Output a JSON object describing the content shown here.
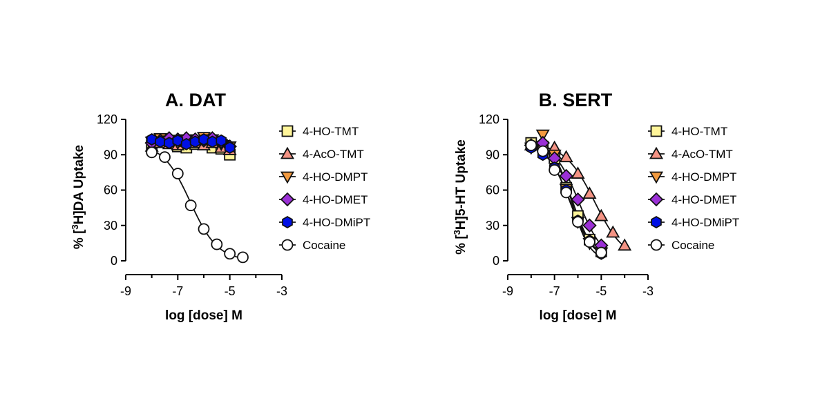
{
  "colors": {
    "4-HO-TMT": "#fff59a",
    "4-AcO-TMT": "#f49384",
    "4-HO-DMPT": "#f39a3f",
    "4-HO-DMET": "#9b30d6",
    "4-HO-DMiPT": "#0010e6",
    "Cocaine": "#ffffff"
  },
  "markers": {
    "4-HO-TMT": "square",
    "4-AcO-TMT": "triangle-up",
    "4-HO-DMPT": "triangle-down",
    "4-HO-DMET": "diamond",
    "4-HO-DMiPT": "hexagon",
    "Cocaine": "circle"
  },
  "chart_data": [
    {
      "type": "scatter",
      "title": "A. DAT",
      "xlabel": "log [dose] M",
      "ylabel_prefix": "% [",
      "ylabel_sup": "3",
      "ylabel_suffix": "H]DA Uptake",
      "xlim": [
        -9,
        -3
      ],
      "ylim": [
        0,
        120
      ],
      "xticks": [
        -9,
        -7,
        -5,
        -3
      ],
      "yticks": [
        0,
        30,
        60,
        90,
        120
      ],
      "legend_position": "right",
      "series": [
        {
          "name": "4-HO-TMT",
          "x": [
            -8,
            -7.67,
            -7.33,
            -7,
            -6.67,
            -6.33,
            -6,
            -5.67,
            -5.33,
            -5
          ],
          "y": [
            98,
            101,
            102,
            97,
            96,
            99,
            100,
            96,
            95,
            90
          ]
        },
        {
          "name": "4-AcO-TMT",
          "x": [
            -8,
            -7.67,
            -7.33,
            -7,
            -6.67,
            -6.33,
            -6,
            -5.67,
            -5.33,
            -5
          ],
          "y": [
            97,
            100,
            99,
            98,
            101,
            100,
            98,
            100,
            96,
            94
          ]
        },
        {
          "name": "4-HO-DMPT",
          "x": [
            -8,
            -7.67,
            -7.33,
            -7,
            -6.67,
            -6.33,
            -6,
            -5.67,
            -5.33,
            -5
          ],
          "y": [
            101,
            104,
            102,
            100,
            103,
            102,
            105,
            103,
            99,
            97
          ]
        },
        {
          "name": "4-HO-DMET",
          "x": [
            -8,
            -7.67,
            -7.33,
            -7,
            -6.67,
            -6.33,
            -6,
            -5.67,
            -5.33,
            -5
          ],
          "y": [
            100,
            102,
            104,
            103,
            104,
            103,
            102,
            104,
            101,
            97
          ]
        },
        {
          "name": "4-HO-DMiPT",
          "x": [
            -8,
            -7.67,
            -7.33,
            -7,
            -6.67,
            -6.33,
            -6,
            -5.67,
            -5.33,
            -5
          ],
          "y": [
            103,
            101,
            100,
            102,
            99,
            101,
            103,
            101,
            102,
            96
          ]
        },
        {
          "name": "Cocaine",
          "x": [
            -8,
            -7.5,
            -7,
            -6.5,
            -6,
            -5.5,
            -5,
            -4.5
          ],
          "y": [
            92,
            88,
            74,
            47,
            27,
            14,
            6,
            3
          ]
        }
      ]
    },
    {
      "type": "scatter",
      "title": "B. SERT",
      "xlabel": "log [dose] M",
      "ylabel_prefix": "% [",
      "ylabel_sup": "3",
      "ylabel_suffix": "H]5-HT Uptake",
      "xlim": [
        -9,
        -3
      ],
      "ylim": [
        0,
        120
      ],
      "xticks": [
        -9,
        -7,
        -5,
        -3
      ],
      "yticks": [
        0,
        30,
        60,
        90,
        120
      ],
      "legend_position": "right",
      "series": [
        {
          "name": "4-HO-TMT",
          "x": [
            -8,
            -7.5,
            -7,
            -6.5,
            -6,
            -5.5,
            -5
          ],
          "y": [
            100,
            97,
            87,
            62,
            38,
            18,
            8
          ]
        },
        {
          "name": "4-AcO-TMT",
          "x": [
            -8,
            -7.5,
            -7,
            -6.5,
            -6,
            -5.5,
            -5,
            -4.5,
            -4
          ],
          "y": [
            98,
            99,
            96,
            88,
            74,
            57,
            38,
            24,
            13
          ]
        },
        {
          "name": "4-HO-DMPT",
          "x": [
            -8,
            -7.5,
            -7,
            -6.5,
            -6,
            -5.5,
            -5
          ],
          "y": [
            96,
            107,
            90,
            61,
            33,
            15,
            7
          ]
        },
        {
          "name": "4-HO-DMET",
          "x": [
            -8,
            -7.5,
            -7,
            -6.5,
            -6,
            -5.5,
            -5
          ],
          "y": [
            98,
            100,
            87,
            72,
            52,
            30,
            13
          ]
        },
        {
          "name": "4-HO-DMiPT",
          "x": [
            -8,
            -7.5,
            -7,
            -6.5,
            -6,
            -5.5,
            -5
          ],
          "y": [
            96,
            90,
            79,
            60,
            34,
            17,
            6
          ]
        },
        {
          "name": "Cocaine",
          "x": [
            -8,
            -7.5,
            -7,
            -6.5,
            -6,
            -5.5,
            -5
          ],
          "y": [
            98,
            93,
            77,
            58,
            33,
            16,
            7
          ]
        }
      ]
    }
  ]
}
